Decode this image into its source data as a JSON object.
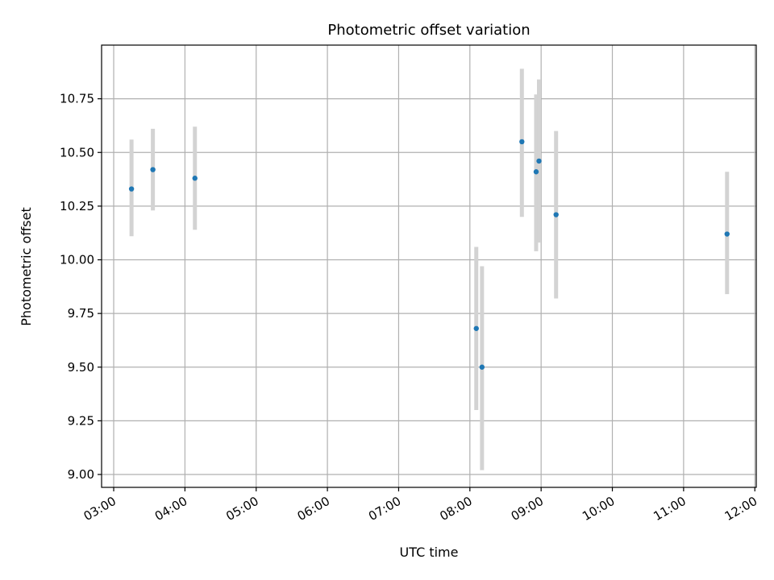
{
  "chart_data": {
    "type": "scatter",
    "title": "Photometric offset variation",
    "xlabel": "UTC time",
    "ylabel": "Photometric offset",
    "x_tick_labels": [
      "03:00",
      "04:00",
      "05:00",
      "06:00",
      "07:00",
      "08:00",
      "09:00",
      "10:00",
      "11:00",
      "12:00"
    ],
    "y_tick_labels": [
      "9.00",
      "9.25",
      "9.50",
      "9.75",
      "10.00",
      "10.25",
      "10.50",
      "10.75"
    ],
    "x_unit": "hours UTC",
    "xlim": [
      2.83,
      12.02
    ],
    "ylim": [
      8.94,
      11.0
    ],
    "grid": true,
    "colors": {
      "point": "#1f77b4",
      "errorbar": "#d3d3d3",
      "grid": "#b0b0b0"
    },
    "points": [
      {
        "time": "03:15",
        "x": 3.25,
        "y": 10.33,
        "yerr_low": 10.11,
        "yerr_high": 10.56
      },
      {
        "time": "03:33",
        "x": 3.55,
        "y": 10.42,
        "yerr_low": 10.23,
        "yerr_high": 10.61
      },
      {
        "time": "04:08",
        "x": 4.14,
        "y": 10.38,
        "yerr_low": 10.14,
        "yerr_high": 10.62
      },
      {
        "time": "08:05",
        "x": 8.09,
        "y": 9.68,
        "yerr_low": 9.3,
        "yerr_high": 10.06
      },
      {
        "time": "08:10",
        "x": 8.17,
        "y": 9.5,
        "yerr_low": 9.02,
        "yerr_high": 9.97
      },
      {
        "time": "08:44",
        "x": 8.73,
        "y": 10.55,
        "yerr_low": 10.2,
        "yerr_high": 10.89
      },
      {
        "time": "08:55",
        "x": 8.93,
        "y": 10.41,
        "yerr_low": 10.04,
        "yerr_high": 10.77
      },
      {
        "time": "08:58",
        "x": 8.97,
        "y": 10.46,
        "yerr_low": 10.08,
        "yerr_high": 10.84
      },
      {
        "time": "09:12",
        "x": 9.21,
        "y": 10.21,
        "yerr_low": 9.82,
        "yerr_high": 10.6
      },
      {
        "time": "11:36",
        "x": 11.61,
        "y": 10.12,
        "yerr_low": 9.84,
        "yerr_high": 10.41
      }
    ]
  }
}
